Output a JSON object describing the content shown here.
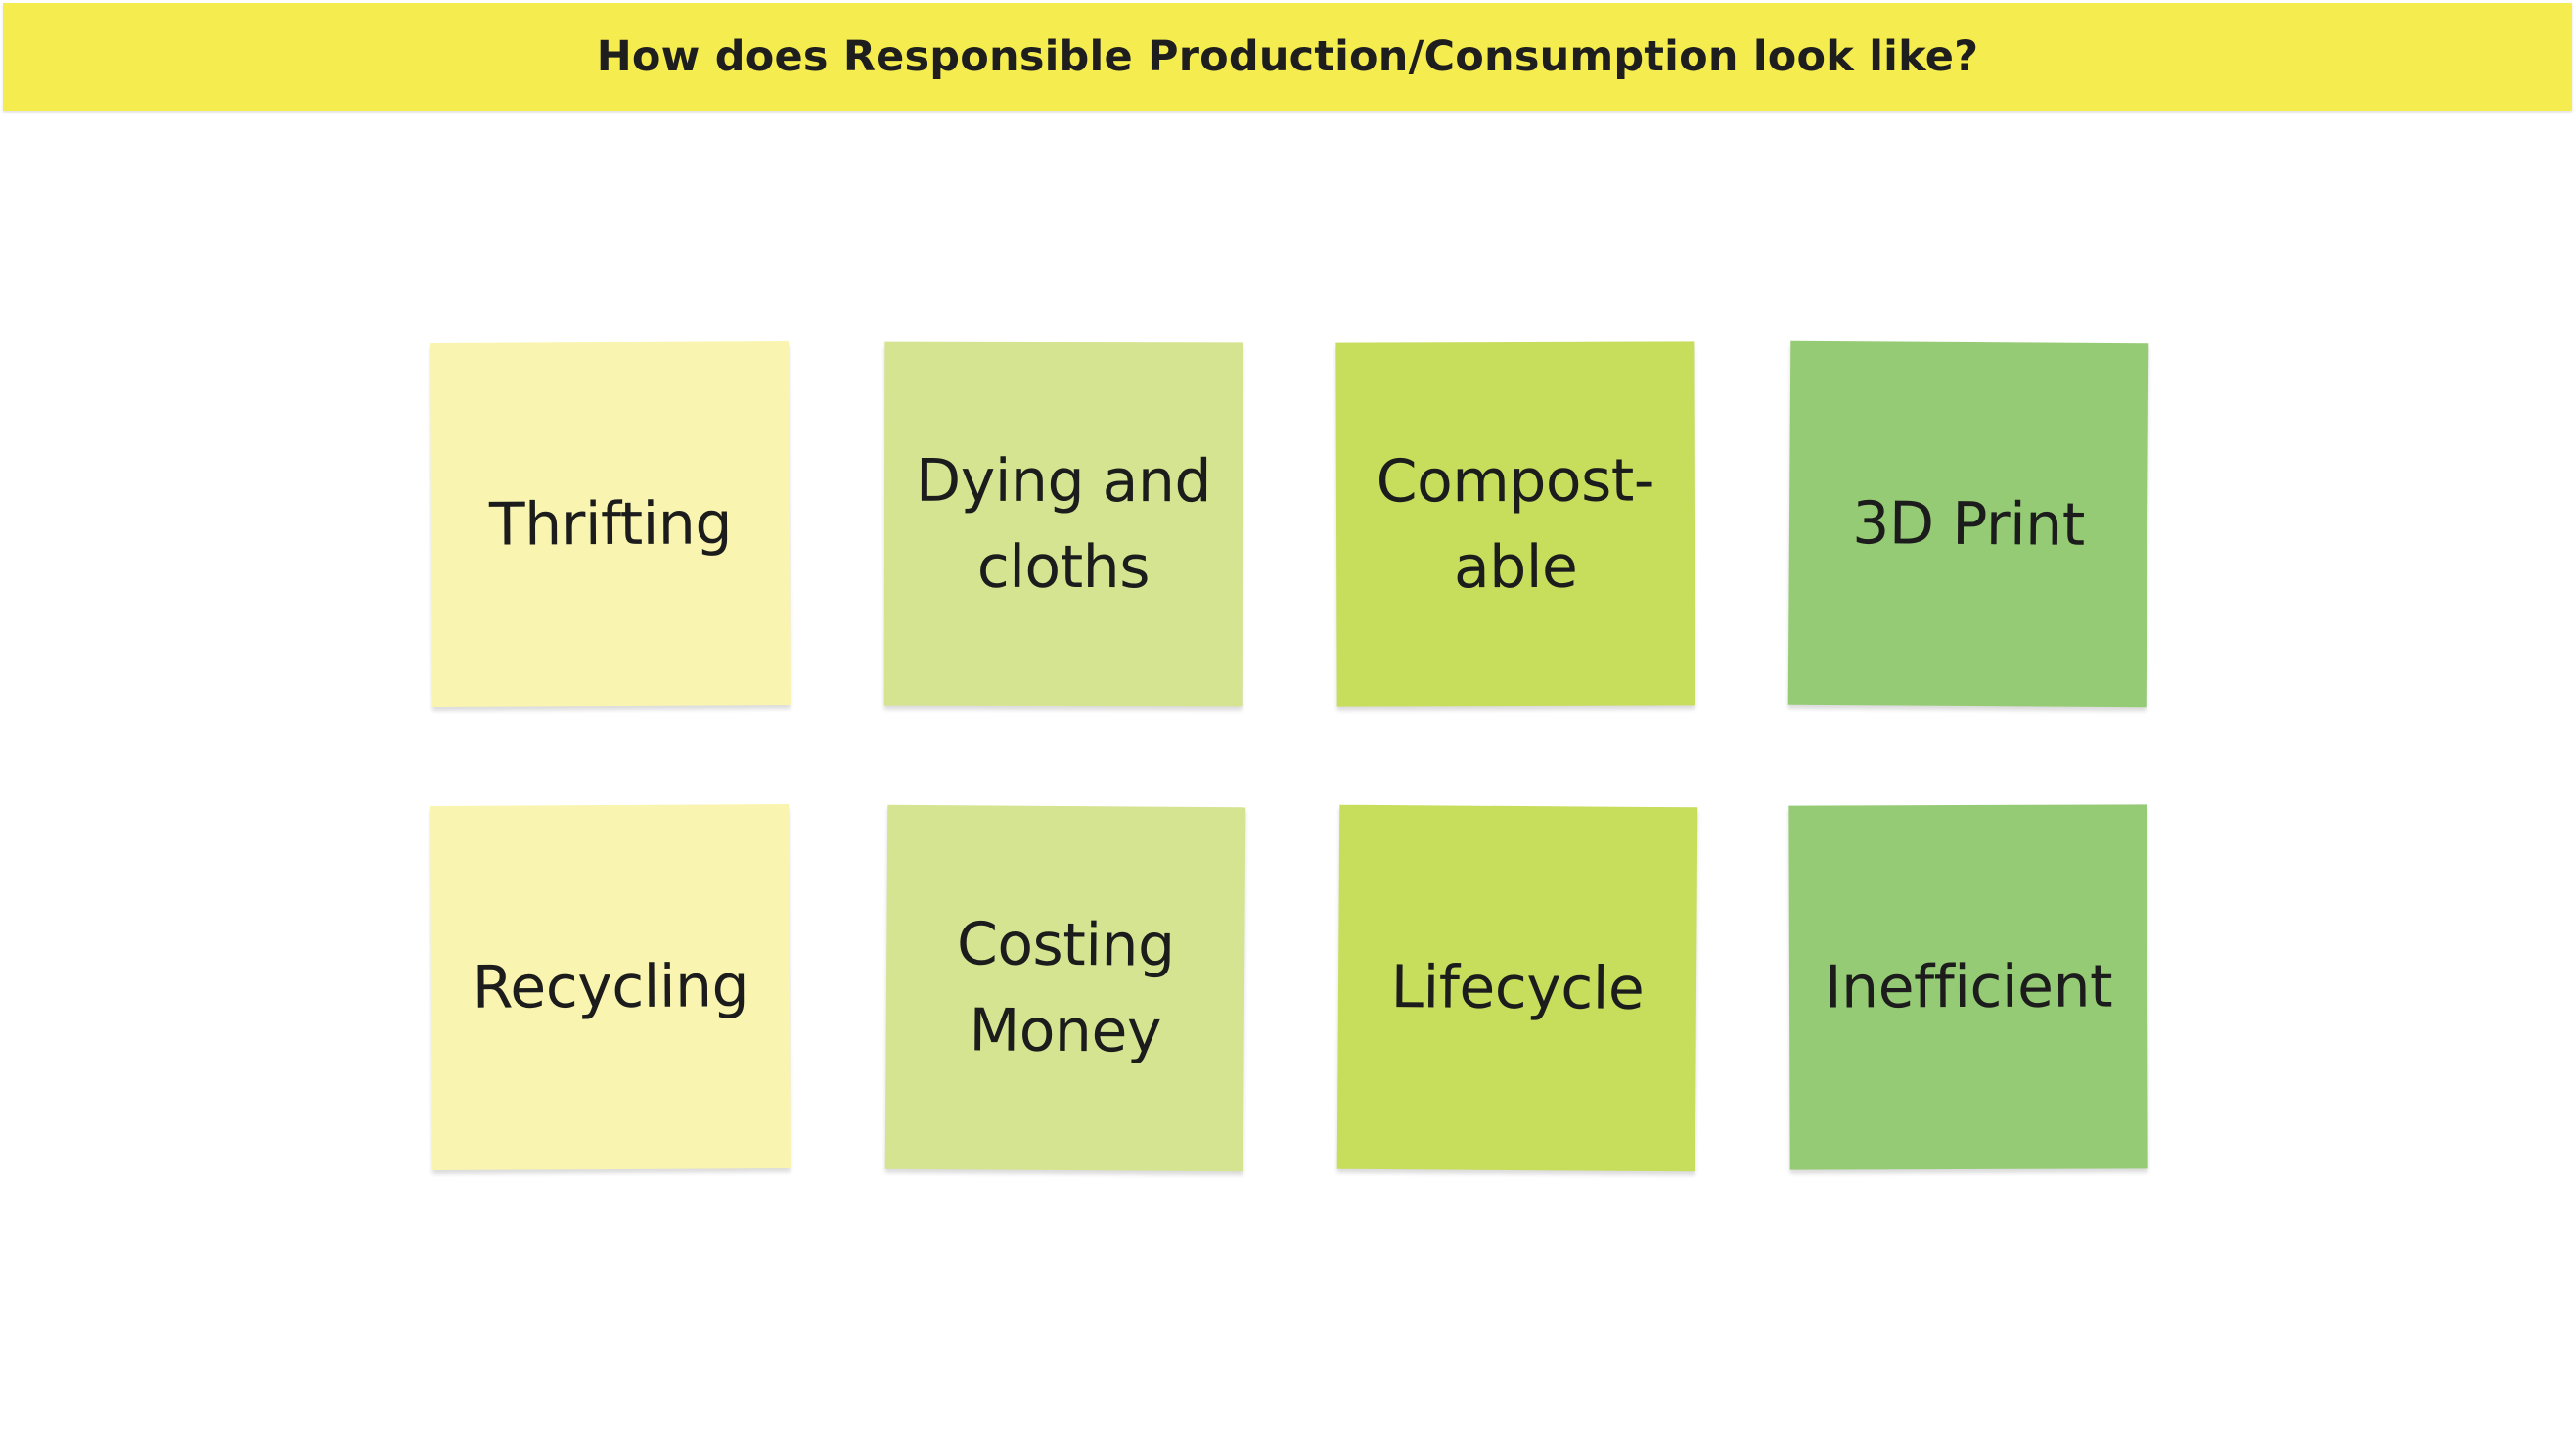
{
  "header": {
    "title": "How does Responsible Production/Consumption look like?",
    "color": "#f5ec50"
  },
  "notes": [
    {
      "text": "Thrifting",
      "color": "#f9f5b0"
    },
    {
      "text": "Dying and\ncloths",
      "color": "#d5e491"
    },
    {
      "text": "Compost-\nable",
      "color": "#c7dd5c"
    },
    {
      "text": "3D Print",
      "color": "#96cb75"
    },
    {
      "text": "Recycling",
      "color": "#f9f5b0"
    },
    {
      "text": "Costing\nMoney",
      "color": "#d5e491"
    },
    {
      "text": "Lifecycle",
      "color": "#c7dd5c"
    },
    {
      "text": "Inefficient",
      "color": "#96cb75"
    }
  ]
}
